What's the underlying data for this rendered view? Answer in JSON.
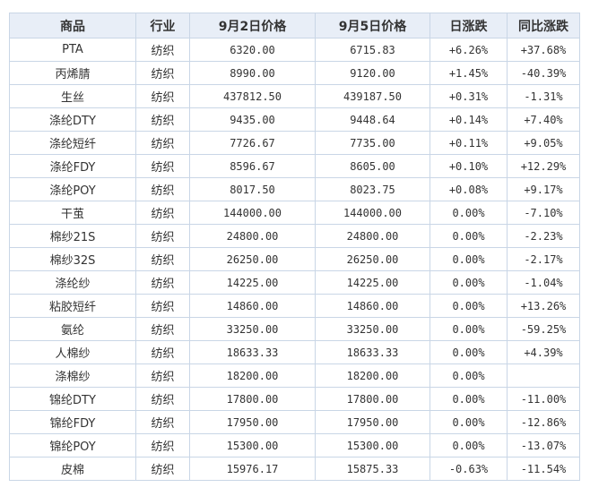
{
  "colors": {
    "up": "#e00000",
    "down": "#008000",
    "link": "#e8862c",
    "header_bg": "#e8eef7",
    "border": "#c9d6e6"
  },
  "headers": [
    "商品",
    "行业",
    "9月2日价格",
    "9月5日价格",
    "日涨跌",
    "同比涨跌"
  ],
  "rows": [
    {
      "name": "PTA",
      "name_link": false,
      "industry": "纺织",
      "price1": "6320.00",
      "price2": "6715.83",
      "day": "+6.26%",
      "day_dir": "up",
      "yoy": "+37.68%",
      "yoy_dir": "up"
    },
    {
      "name": "丙烯腈",
      "name_link": false,
      "industry": "纺织",
      "price1": "8990.00",
      "price2": "9120.00",
      "day": "+1.45%",
      "day_dir": "up",
      "yoy": "-40.39%",
      "yoy_dir": "down"
    },
    {
      "name": "生丝",
      "name_link": false,
      "industry": "纺织",
      "price1": "437812.50",
      "price2": "439187.50",
      "day": "+0.31%",
      "day_dir": "up",
      "yoy": "-1.31%",
      "yoy_dir": "down"
    },
    {
      "name": "涤纶DTY",
      "name_link": true,
      "industry": "纺织",
      "price1": "9435.00",
      "price2": "9448.64",
      "day": "+0.14%",
      "day_dir": "up",
      "yoy": "+7.40%",
      "yoy_dir": "up"
    },
    {
      "name": "涤纶短纤",
      "name_link": true,
      "industry": "纺织",
      "price1": "7726.67",
      "price2": "7735.00",
      "day": "+0.11%",
      "day_dir": "up",
      "yoy": "+9.05%",
      "yoy_dir": "up"
    },
    {
      "name": "涤纶FDY",
      "name_link": true,
      "industry": "纺织",
      "price1": "8596.67",
      "price2": "8605.00",
      "day": "+0.10%",
      "day_dir": "up",
      "yoy": "+12.29%",
      "yoy_dir": "up"
    },
    {
      "name": "涤纶POY",
      "name_link": true,
      "industry": "纺织",
      "price1": "8017.50",
      "price2": "8023.75",
      "day": "+0.08%",
      "day_dir": "up",
      "yoy": "+9.17%",
      "yoy_dir": "up"
    },
    {
      "name": "干茧",
      "name_link": true,
      "industry": "纺织",
      "price1": "144000.00",
      "price2": "144000.00",
      "day": "0.00%",
      "day_dir": "flat",
      "yoy": "-7.10%",
      "yoy_dir": "down"
    },
    {
      "name": "棉纱21S",
      "name_link": true,
      "industry": "纺织",
      "price1": "24800.00",
      "price2": "24800.00",
      "day": "0.00%",
      "day_dir": "flat",
      "yoy": "-2.23%",
      "yoy_dir": "down"
    },
    {
      "name": "棉纱32S",
      "name_link": false,
      "industry": "纺织",
      "price1": "26250.00",
      "price2": "26250.00",
      "day": "0.00%",
      "day_dir": "flat",
      "yoy": "-2.17%",
      "yoy_dir": "down"
    },
    {
      "name": "涤纶纱",
      "name_link": true,
      "industry": "纺织",
      "price1": "14225.00",
      "price2": "14225.00",
      "day": "0.00%",
      "day_dir": "flat",
      "yoy": "-1.04%",
      "yoy_dir": "down"
    },
    {
      "name": "粘胶短纤",
      "name_link": true,
      "industry": "纺织",
      "price1": "14860.00",
      "price2": "14860.00",
      "day": "0.00%",
      "day_dir": "flat",
      "yoy": "+13.26%",
      "yoy_dir": "up"
    },
    {
      "name": "氨纶",
      "name_link": true,
      "industry": "纺织",
      "price1": "33250.00",
      "price2": "33250.00",
      "day": "0.00%",
      "day_dir": "flat",
      "yoy": "-59.25%",
      "yoy_dir": "down"
    },
    {
      "name": "人棉纱",
      "name_link": true,
      "industry": "纺织",
      "price1": "18633.33",
      "price2": "18633.33",
      "day": "0.00%",
      "day_dir": "flat",
      "yoy": "+4.39%",
      "yoy_dir": "up"
    },
    {
      "name": "涤棉纱",
      "name_link": false,
      "industry": "纺织",
      "price1": "18200.00",
      "price2": "18200.00",
      "day": "0.00%",
      "day_dir": "flat",
      "yoy": "",
      "yoy_dir": "flat"
    },
    {
      "name": "锦纶DTY",
      "name_link": true,
      "industry": "纺织",
      "price1": "17800.00",
      "price2": "17800.00",
      "day": "0.00%",
      "day_dir": "flat",
      "yoy": "-11.00%",
      "yoy_dir": "down"
    },
    {
      "name": "锦纶FDY",
      "name_link": true,
      "industry": "纺织",
      "price1": "17950.00",
      "price2": "17950.00",
      "day": "0.00%",
      "day_dir": "flat",
      "yoy": "-12.86%",
      "yoy_dir": "down"
    },
    {
      "name": "锦纶POY",
      "name_link": true,
      "industry": "纺织",
      "price1": "15300.00",
      "price2": "15300.00",
      "day": "0.00%",
      "day_dir": "flat",
      "yoy": "-13.07%",
      "yoy_dir": "down"
    },
    {
      "name": "皮棉",
      "name_link": false,
      "industry": "纺织",
      "price1": "15976.17",
      "price2": "15875.33",
      "day": "-0.63%",
      "day_dir": "down",
      "yoy": "-11.54%",
      "yoy_dir": "down"
    }
  ]
}
